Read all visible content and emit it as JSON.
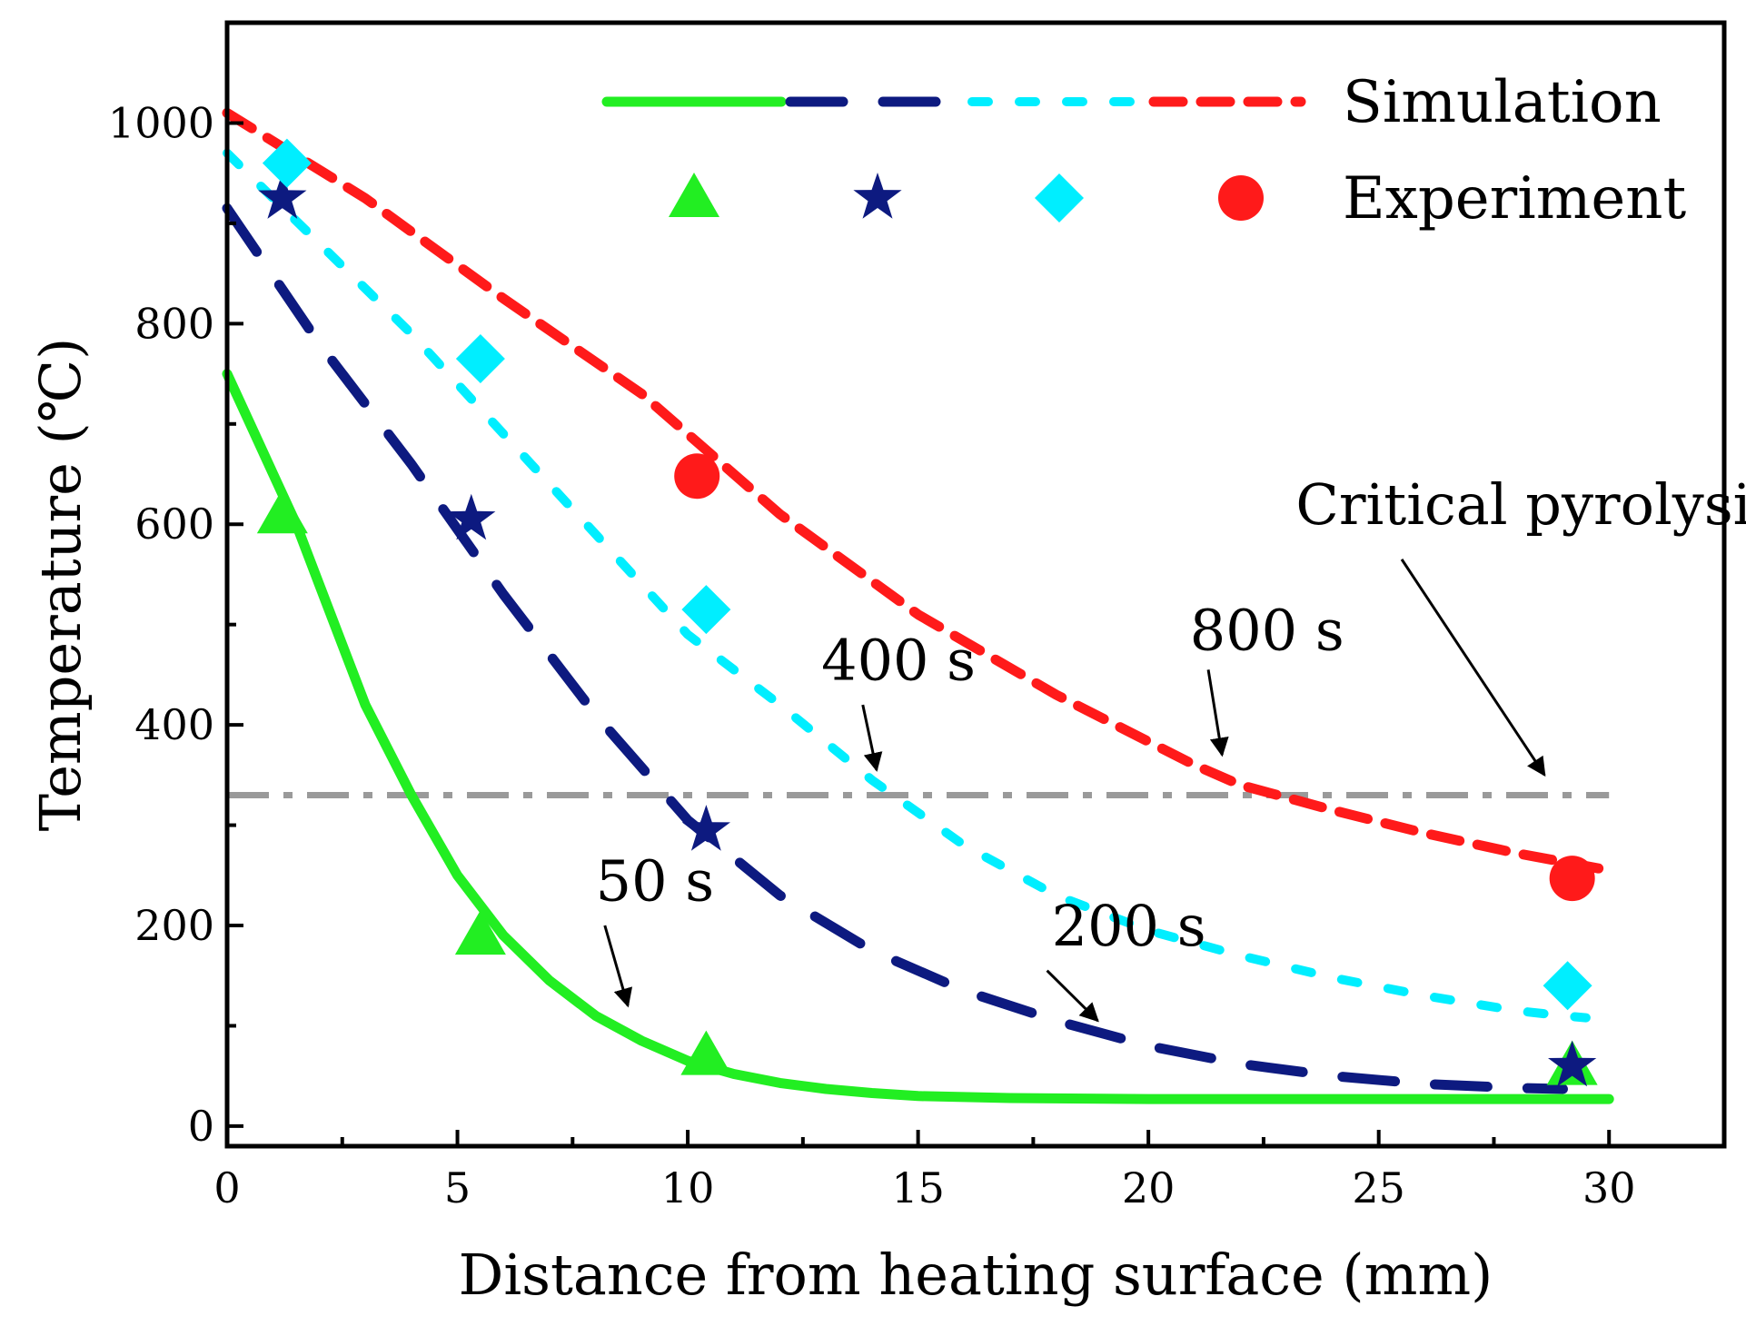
{
  "chart_data": {
    "type": "line",
    "xlabel": "Distance from heating surface (mm)",
    "ylabel": "Temperature (℃)",
    "xlim": [
      0,
      32.5
    ],
    "ylim": [
      -20,
      1100
    ],
    "xticks": [
      0,
      5,
      10,
      15,
      20,
      25,
      30
    ],
    "yticks": [
      0,
      200,
      400,
      600,
      800,
      1000
    ],
    "grid": false,
    "legend": {
      "placement": "top-right",
      "simulation_label": "Simulation",
      "experiment_label": "Experiment"
    },
    "colors": {
      "s50": "#22ee22",
      "s200": "#0d1a80",
      "s400": "#00eeff",
      "s800": "#ff1a1a",
      "critical": "#9a9a9a"
    },
    "series": [
      {
        "key": "s50",
        "simulation": {
          "x": [
            0,
            0.5,
            1,
            1.5,
            2,
            3,
            4,
            5,
            6,
            7,
            8,
            9,
            10,
            11,
            12,
            13,
            14,
            15,
            17,
            20,
            25,
            30
          ],
          "y": [
            750,
            700,
            650,
            600,
            540,
            420,
            330,
            250,
            190,
            145,
            110,
            85,
            65,
            52,
            43,
            37,
            33,
            30,
            28,
            27,
            27,
            27
          ]
        },
        "experiment": {
          "marker": "triangle",
          "x": [
            1.2,
            5.5,
            10.4,
            29.2
          ],
          "y": [
            610,
            190,
            70,
            60
          ]
        }
      },
      {
        "key": "s200",
        "simulation": {
          "x": [
            0,
            2,
            4,
            6,
            8,
            10,
            12,
            14,
            16,
            18,
            20,
            22,
            24,
            26,
            28,
            29
          ],
          "y": [
            915,
            780,
            660,
            530,
            410,
            305,
            230,
            175,
            135,
            105,
            80,
            62,
            50,
            42,
            38,
            37
          ]
        },
        "experiment": {
          "marker": "star",
          "x": [
            1.2,
            5.3,
            10.4,
            29.2
          ],
          "y": [
            925,
            605,
            295,
            60
          ]
        }
      },
      {
        "key": "s400",
        "simulation": {
          "x": [
            0,
            2,
            4,
            6,
            8,
            10,
            12,
            14,
            16,
            18,
            20,
            22,
            24,
            26,
            28,
            29,
            29.5
          ],
          "y": [
            970,
            880,
            790,
            690,
            590,
            490,
            420,
            345,
            280,
            230,
            195,
            170,
            148,
            130,
            115,
            110,
            108
          ]
        },
        "experiment": {
          "marker": "diamond",
          "x": [
            1.3,
            5.5,
            10.4,
            29.1
          ],
          "y": [
            960,
            765,
            515,
            140
          ]
        }
      },
      {
        "key": "s800",
        "simulation": {
          "x": [
            0,
            3,
            6,
            9,
            12,
            15,
            18,
            21,
            22,
            24,
            26,
            28,
            30
          ],
          "y": [
            1010,
            925,
            825,
            730,
            610,
            510,
            430,
            360,
            340,
            315,
            292,
            272,
            255
          ]
        },
        "experiment": {
          "marker": "circle",
          "x": [
            10.2,
            29.2
          ],
          "y": [
            648,
            247
          ]
        }
      }
    ],
    "critical_line": {
      "y": 330,
      "x": [
        0,
        30
      ]
    },
    "annotations": [
      {
        "text": "50 s",
        "text_x": 8.0,
        "text_y": 225,
        "arrow_from": [
          8.2,
          200
        ],
        "arrow_to": [
          8.7,
          120
        ]
      },
      {
        "text": "200 s",
        "text_x": 17.9,
        "text_y": 180,
        "arrow_from": [
          17.8,
          155
        ],
        "arrow_to": [
          18.9,
          105
        ]
      },
      {
        "text": "400 s",
        "text_x": 12.9,
        "text_y": 445,
        "arrow_from": [
          13.8,
          420
        ],
        "arrow_to": [
          14.1,
          355
        ]
      },
      {
        "text": "800 s",
        "text_x": 20.9,
        "text_y": 475,
        "arrow_from": [
          21.3,
          455
        ],
        "arrow_to": [
          21.6,
          370
        ]
      },
      {
        "text": "Critical pyrolysis temperature",
        "text_x": 23.2,
        "text_y": 600,
        "arrow_from": [
          25.5,
          565
        ],
        "arrow_to": [
          28.6,
          350
        ]
      }
    ]
  }
}
